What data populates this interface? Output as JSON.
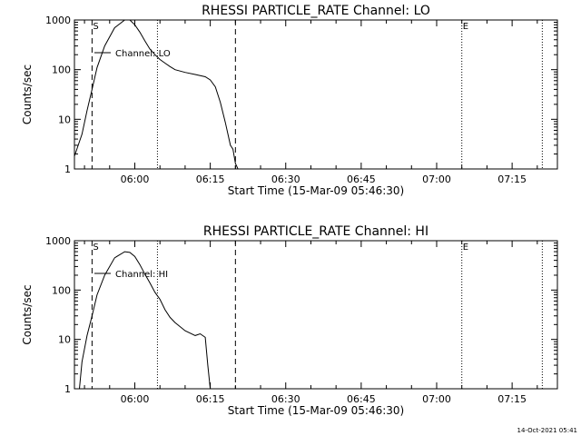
{
  "stamp": "14-Oct-2021 05:41",
  "chart_data": [
    {
      "type": "line",
      "title": "RHESSI PARTICLE_RATE Channel: LO",
      "xlabel": "Start Time (15-Mar-09 05:46:30)",
      "ylabel": "Counts/sec",
      "yscale": "log",
      "xlim": [
        "05:48:00",
        "07:24:00"
      ],
      "ylim": [
        1,
        1000
      ],
      "xticks": [
        "06:00",
        "06:15",
        "06:30",
        "06:45",
        "07:00",
        "07:15"
      ],
      "yticks": [
        "1",
        "10",
        "100",
        "1000"
      ],
      "legend": "Channel: LO",
      "legend_position": "top-left",
      "marker_s": "S",
      "marker_e": "E",
      "dashed_lines": [
        "05:51:30",
        "06:20:00"
      ],
      "dotted_lines": [
        "06:04:30",
        "07:05:00",
        "07:21:00"
      ],
      "series": [
        {
          "x": [
            "05:48:00",
            "05:49:30",
            "05:50:30",
            "05:51:30",
            "05:52:30",
            "05:54:00",
            "05:56:00",
            "05:58:00",
            "05:59:00",
            "06:00:00",
            "06:01:00",
            "06:02:00",
            "06:03:00",
            "06:04:00",
            "06:05:00",
            "06:06:00",
            "06:07:00",
            "06:08:00",
            "06:10:00",
            "06:12:00",
            "06:14:00",
            "06:15:00",
            "06:16:00",
            "06:17:00",
            "06:18:00",
            "06:19:00",
            "06:19:30",
            "06:20:00",
            "06:20:30"
          ],
          "y": [
            1.8,
            5,
            15,
            40,
            110,
            300,
            700,
            1000,
            1000,
            800,
            570,
            380,
            260,
            200,
            160,
            135,
            115,
            100,
            88,
            80,
            72,
            62,
            45,
            22,
            8.5,
            3,
            2.5,
            1.3,
            1
          ]
        }
      ]
    },
    {
      "type": "line",
      "title": "RHESSI PARTICLE_RATE Channel: HI",
      "xlabel": "Start Time (15-Mar-09 05:46:30)",
      "ylabel": "Counts/sec",
      "yscale": "log",
      "xlim": [
        "05:48:00",
        "07:24:00"
      ],
      "ylim": [
        1,
        1000
      ],
      "xticks": [
        "06:00",
        "06:15",
        "06:30",
        "06:45",
        "07:00",
        "07:15"
      ],
      "yticks": [
        "1",
        "10",
        "100",
        "1000"
      ],
      "legend": "Channel: HI",
      "legend_position": "top-left",
      "marker_s": "S",
      "marker_e": "E",
      "dashed_lines": [
        "05:51:30",
        "06:20:00"
      ],
      "dotted_lines": [
        "06:04:30",
        "07:05:00",
        "07:21:00"
      ],
      "series": [
        {
          "x": [
            "05:49:00",
            "05:49:30",
            "05:50:30",
            "05:51:30",
            "05:52:30",
            "05:54:00",
            "05:56:00",
            "05:58:00",
            "05:59:00",
            "06:00:00",
            "06:01:00",
            "06:02:00",
            "06:03:00",
            "06:04:00",
            "06:05:00",
            "06:06:00",
            "06:07:00",
            "06:08:00",
            "06:10:00",
            "06:12:00",
            "06:13:00",
            "06:14:00",
            "06:14:30",
            "06:15:00"
          ],
          "y": [
            1,
            3.5,
            12,
            30,
            80,
            200,
            450,
            600,
            580,
            480,
            330,
            210,
            140,
            90,
            65,
            40,
            28,
            22,
            15,
            12,
            13,
            11,
            3,
            1
          ]
        }
      ]
    }
  ]
}
